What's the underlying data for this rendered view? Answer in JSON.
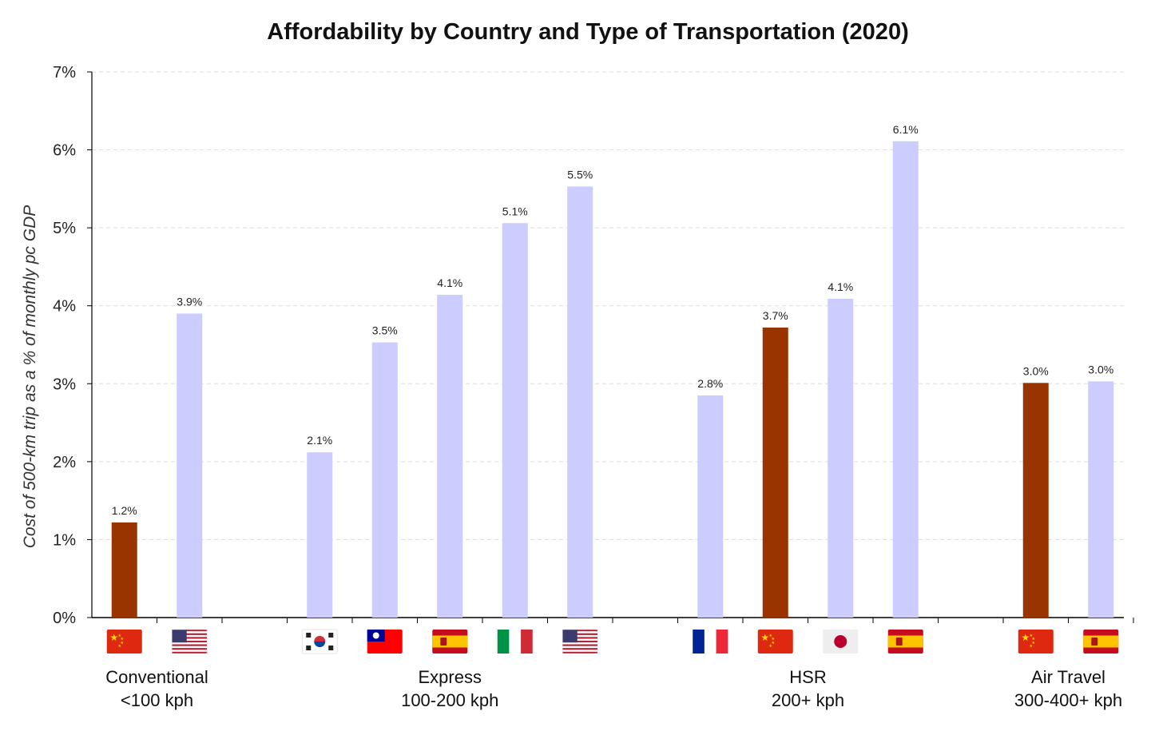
{
  "chart_data": {
    "type": "bar",
    "title": "Affordability by Country and Type of Transportation (2020)",
    "ylabel": "Cost of 500-km trip as a % of monthly pc GDP",
    "ylim": [
      0,
      7
    ],
    "yticks": [
      "0%",
      "1%",
      "2%",
      "3%",
      "4%",
      "5%",
      "6%",
      "7%"
    ],
    "grid": "horizontal-dashed",
    "colors": {
      "china": "#993300",
      "other": "#ccccff"
    },
    "groups": [
      {
        "label_line1": "Conventional",
        "label_line2": "<100 kph",
        "bars": [
          {
            "country": "China",
            "flag": "cn",
            "value": 1.22,
            "label": "1.2%"
          },
          {
            "country": "United States",
            "flag": "us",
            "value": 3.9,
            "label": "3.9%"
          }
        ]
      },
      {
        "label_line1": "Express",
        "label_line2": "100-200 kph",
        "bars": [
          {
            "country": "South Korea",
            "flag": "kr",
            "value": 2.12,
            "label": "2.1%"
          },
          {
            "country": "Taiwan",
            "flag": "tw",
            "value": 3.53,
            "label": "3.5%"
          },
          {
            "country": "Spain",
            "flag": "es",
            "value": 4.14,
            "label": "4.1%"
          },
          {
            "country": "Italy",
            "flag": "it",
            "value": 5.06,
            "label": "5.1%"
          },
          {
            "country": "United States",
            "flag": "us",
            "value": 5.53,
            "label": "5.5%"
          }
        ]
      },
      {
        "label_line1": "HSR",
        "label_line2": "200+ kph",
        "bars": [
          {
            "country": "France",
            "flag": "fr",
            "value": 2.85,
            "label": "2.8%"
          },
          {
            "country": "China",
            "flag": "cn",
            "value": 3.72,
            "label": "3.7%"
          },
          {
            "country": "Japan",
            "flag": "jp",
            "value": 4.09,
            "label": "4.1%"
          },
          {
            "country": "Spain",
            "flag": "es",
            "value": 6.11,
            "label": "6.1%"
          }
        ]
      },
      {
        "label_line1": "Air Travel",
        "label_line2": "300-400+ kph",
        "bars": [
          {
            "country": "China",
            "flag": "cn",
            "value": 3.01,
            "label": "3.0%"
          },
          {
            "country": "Spain",
            "flag": "es",
            "value": 3.03,
            "label": "3.0%"
          }
        ]
      }
    ]
  }
}
